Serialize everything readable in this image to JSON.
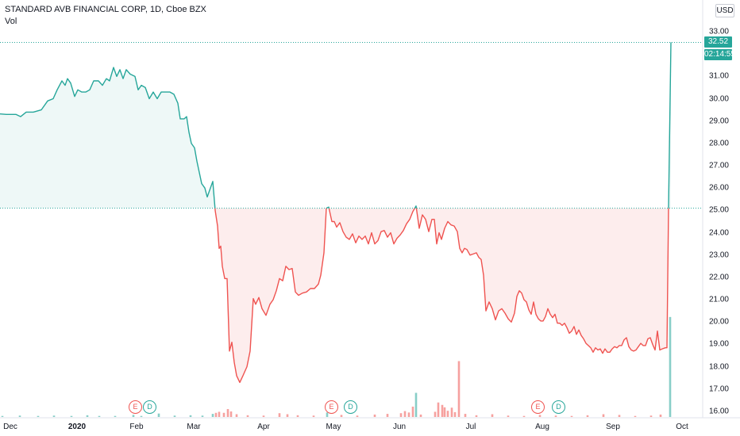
{
  "header": {
    "title": "STANDARD AVB FINANCIAL CORP, 1D, Cboe BZX",
    "volume_label": "Vol",
    "currency_button": "USD",
    "clipped_top_label": "3"
  },
  "price_badge": {
    "price": "32.52",
    "countdown": "02:14:55"
  },
  "y_ticks": [
    "33.00",
    "32.00",
    "31.00",
    "30.00",
    "29.00",
    "28.00",
    "27.00",
    "26.00",
    "25.00",
    "24.00",
    "23.00",
    "22.00",
    "21.00",
    "20.00",
    "19.00",
    "18.00",
    "17.00",
    "16.00"
  ],
  "x_ticks": [
    "Dec",
    "2020",
    "Feb",
    "Mar",
    "Apr",
    "May",
    "Jun",
    "Jul",
    "Aug",
    "Sep",
    "Oct"
  ],
  "events": [
    {
      "label": "E",
      "kind": "earnings"
    },
    {
      "label": "D",
      "kind": "dividend"
    },
    {
      "label": "E",
      "kind": "earnings"
    },
    {
      "label": "D",
      "kind": "dividend"
    },
    {
      "label": "E",
      "kind": "earnings"
    },
    {
      "label": "D",
      "kind": "dividend"
    }
  ],
  "colors": {
    "up": "#26a69a",
    "down": "#ef5350",
    "baseline": "#26a69a"
  },
  "chart_data": {
    "type": "area",
    "subtype": "baseline",
    "baseline_value": 25.1,
    "last_price": 32.52,
    "ylim": [
      15.85,
      33.6
    ],
    "points": [
      [
        0,
        29.32
      ],
      [
        8,
        29.3
      ],
      [
        12,
        29.3
      ],
      [
        20,
        29.3
      ],
      [
        26,
        29.2
      ],
      [
        33,
        29.4
      ],
      [
        42,
        29.4
      ],
      [
        52,
        29.5
      ],
      [
        60,
        29.9
      ],
      [
        67,
        30.0
      ],
      [
        72,
        30.4
      ],
      [
        78,
        30.8
      ],
      [
        82,
        30.6
      ],
      [
        85,
        30.9
      ],
      [
        89,
        30.7
      ],
      [
        94,
        30.1
      ],
      [
        98,
        30.4
      ],
      [
        103,
        30.3
      ],
      [
        108,
        30.3
      ],
      [
        113,
        30.4
      ],
      [
        118,
        30.8
      ],
      [
        124,
        30.8
      ],
      [
        129,
        30.6
      ],
      [
        134,
        30.9
      ],
      [
        138,
        30.8
      ],
      [
        143,
        31.4
      ],
      [
        147,
        31.0
      ],
      [
        151,
        31.3
      ],
      [
        155,
        30.9
      ],
      [
        159,
        31.3
      ],
      [
        164,
        31.1
      ],
      [
        170,
        31.0
      ],
      [
        174,
        30.4
      ],
      [
        178,
        30.6
      ],
      [
        183,
        30.5
      ],
      [
        188,
        30.0
      ],
      [
        193,
        30.3
      ],
      [
        198,
        30.0
      ],
      [
        203,
        30.3
      ],
      [
        208,
        30.3
      ],
      [
        214,
        30.3
      ],
      [
        219,
        30.2
      ],
      [
        224,
        29.8
      ],
      [
        227,
        29.1
      ],
      [
        232,
        29.1
      ],
      [
        235,
        29.2
      ],
      [
        238,
        28.5
      ],
      [
        241,
        28.0
      ],
      [
        245,
        27.8
      ],
      [
        248,
        27.2
      ],
      [
        251,
        26.7
      ],
      [
        254,
        26.2
      ],
      [
        258,
        26.0
      ],
      [
        261,
        25.6
      ],
      [
        265,
        26.0
      ],
      [
        268,
        26.3
      ],
      [
        271,
        25.0
      ],
      [
        274,
        24.3
      ],
      [
        276,
        23.3
      ],
      [
        278,
        23.4
      ],
      [
        280,
        22.5
      ],
      [
        283,
        21.95
      ],
      [
        286,
        21.95
      ],
      [
        289,
        18.7
      ],
      [
        292,
        19.1
      ],
      [
        295,
        18.2
      ],
      [
        298,
        17.6
      ],
      [
        302,
        17.3
      ],
      [
        306,
        17.6
      ],
      [
        311,
        18.0
      ],
      [
        315,
        18.7
      ],
      [
        319,
        21.05
      ],
      [
        322,
        20.8
      ],
      [
        326,
        21.1
      ],
      [
        330,
        20.6
      ],
      [
        335,
        20.3
      ],
      [
        340,
        20.8
      ],
      [
        344,
        21.0
      ],
      [
        348,
        21.4
      ],
      [
        352,
        21.95
      ],
      [
        356,
        21.85
      ],
      [
        360,
        22.5
      ],
      [
        364,
        22.35
      ],
      [
        368,
        22.4
      ],
      [
        372,
        21.35
      ],
      [
        376,
        21.2
      ],
      [
        381,
        21.3
      ],
      [
        386,
        21.35
      ],
      [
        391,
        21.5
      ],
      [
        396,
        21.5
      ],
      [
        401,
        21.7
      ],
      [
        404,
        22.1
      ],
      [
        408,
        23.1
      ],
      [
        411,
        25.1
      ],
      [
        414,
        25.15
      ],
      [
        418,
        24.5
      ],
      [
        421,
        24.5
      ],
      [
        424,
        24.25
      ],
      [
        428,
        24.45
      ],
      [
        432,
        24.05
      ],
      [
        436,
        23.8
      ],
      [
        440,
        23.7
      ],
      [
        444,
        23.95
      ],
      [
        448,
        23.55
      ],
      [
        452,
        23.85
      ],
      [
        456,
        23.7
      ],
      [
        460,
        23.85
      ],
      [
        464,
        23.5
      ],
      [
        468,
        24.0
      ],
      [
        472,
        23.5
      ],
      [
        476,
        23.65
      ],
      [
        480,
        24.05
      ],
      [
        484,
        24.1
      ],
      [
        488,
        23.8
      ],
      [
        492,
        24.0
      ],
      [
        496,
        23.5
      ],
      [
        500,
        23.75
      ],
      [
        504,
        23.9
      ],
      [
        508,
        24.1
      ],
      [
        512,
        24.4
      ],
      [
        516,
        24.6
      ],
      [
        520,
        24.95
      ],
      [
        524,
        25.2
      ],
      [
        528,
        24.2
      ],
      [
        532,
        24.8
      ],
      [
        536,
        24.6
      ],
      [
        540,
        24.05
      ],
      [
        544,
        24.6
      ],
      [
        547,
        24.6
      ],
      [
        550,
        23.5
      ],
      [
        553,
        24.0
      ],
      [
        556,
        23.7
      ],
      [
        560,
        24.2
      ],
      [
        564,
        24.5
      ],
      [
        568,
        24.35
      ],
      [
        572,
        24.3
      ],
      [
        576,
        24.05
      ],
      [
        579,
        23.3
      ],
      [
        582,
        23.1
      ],
      [
        585,
        23.3
      ],
      [
        588,
        23.25
      ],
      [
        592,
        23.0
      ],
      [
        596,
        23.05
      ],
      [
        600,
        23.1
      ],
      [
        603,
        22.9
      ],
      [
        606,
        22.8
      ],
      [
        609,
        22.1
      ],
      [
        612,
        20.5
      ],
      [
        616,
        20.9
      ],
      [
        620,
        20.6
      ],
      [
        624,
        20.1
      ],
      [
        628,
        20.5
      ],
      [
        632,
        20.6
      ],
      [
        636,
        20.4
      ],
      [
        640,
        20.15
      ],
      [
        644,
        20.0
      ],
      [
        648,
        20.4
      ],
      [
        651,
        21.15
      ],
      [
        654,
        21.4
      ],
      [
        657,
        21.3
      ],
      [
        660,
        21.0
      ],
      [
        663,
        20.9
      ],
      [
        666,
        20.55
      ],
      [
        669,
        20.35
      ],
      [
        672,
        20.9
      ],
      [
        675,
        20.35
      ],
      [
        678,
        20.15
      ],
      [
        681,
        20.05
      ],
      [
        684,
        20.05
      ],
      [
        687,
        20.25
      ],
      [
        690,
        20.6
      ],
      [
        693,
        20.35
      ],
      [
        696,
        20.2
      ],
      [
        699,
        20.35
      ],
      [
        702,
        19.95
      ],
      [
        705,
        19.95
      ],
      [
        708,
        19.85
      ],
      [
        711,
        19.95
      ],
      [
        714,
        19.75
      ],
      [
        717,
        19.5
      ],
      [
        720,
        19.6
      ],
      [
        723,
        19.8
      ],
      [
        726,
        19.45
      ],
      [
        729,
        19.65
      ],
      [
        732,
        19.4
      ],
      [
        735,
        19.25
      ],
      [
        738,
        19.05
      ],
      [
        741,
        18.95
      ],
      [
        744,
        18.85
      ],
      [
        747,
        18.65
      ],
      [
        750,
        18.85
      ],
      [
        753,
        18.75
      ],
      [
        756,
        18.8
      ],
      [
        759,
        18.6
      ],
      [
        762,
        18.8
      ],
      [
        765,
        18.65
      ],
      [
        768,
        18.65
      ],
      [
        771,
        18.8
      ],
      [
        774,
        18.9
      ],
      [
        777,
        18.85
      ],
      [
        780,
        18.95
      ],
      [
        783,
        18.95
      ],
      [
        786,
        19.2
      ],
      [
        789,
        19.3
      ],
      [
        792,
        18.9
      ],
      [
        795,
        18.75
      ],
      [
        798,
        18.7
      ],
      [
        801,
        18.75
      ],
      [
        804,
        18.9
      ],
      [
        807,
        19.05
      ],
      [
        810,
        18.95
      ],
      [
        813,
        18.95
      ],
      [
        816,
        19.25
      ],
      [
        819,
        19.3
      ],
      [
        822,
        19.0
      ],
      [
        825,
        18.75
      ],
      [
        828,
        19.6
      ],
      [
        831,
        18.75
      ],
      [
        834,
        18.8
      ],
      [
        838,
        18.85
      ],
      [
        840,
        18.85
      ],
      [
        842,
        25.1
      ],
      [
        845,
        32.52
      ]
    ],
    "volume": [
      [
        3,
        0.3
      ],
      [
        25,
        0.4
      ],
      [
        48,
        0.3
      ],
      [
        68,
        0.4
      ],
      [
        90,
        0.3
      ],
      [
        110,
        0.5
      ],
      [
        125,
        0.3
      ],
      [
        145,
        0.3
      ],
      [
        168,
        0.6
      ],
      [
        178,
        0.3
      ],
      [
        200,
        1.0
      ],
      [
        220,
        0.4
      ],
      [
        240,
        0.5
      ],
      [
        255,
        0.4
      ],
      [
        268,
        0.9
      ],
      [
        272,
        1.2
      ],
      [
        276,
        1.5
      ],
      [
        282,
        1.2
      ],
      [
        287,
        2.3
      ],
      [
        291,
        1.6
      ],
      [
        298,
        0.8
      ],
      [
        312,
        0.5
      ],
      [
        332,
        0.4
      ],
      [
        352,
        1.1
      ],
      [
        362,
        0.8
      ],
      [
        375,
        0.5
      ],
      [
        395,
        0.4
      ],
      [
        412,
        1.3
      ],
      [
        430,
        0.6
      ],
      [
        450,
        0.4
      ],
      [
        472,
        0.7
      ],
      [
        488,
        0.9
      ],
      [
        505,
        1.1
      ],
      [
        510,
        1.7
      ],
      [
        515,
        1.3
      ],
      [
        520,
        3.0
      ],
      [
        524,
        7.0
      ],
      [
        530,
        0.7
      ],
      [
        548,
        1.5
      ],
      [
        552,
        4.2
      ],
      [
        557,
        3.5
      ],
      [
        560,
        2.8
      ],
      [
        564,
        1.8
      ],
      [
        569,
        2.7
      ],
      [
        573,
        1.4
      ],
      [
        578,
        16.2
      ],
      [
        586,
        0.9
      ],
      [
        600,
        0.5
      ],
      [
        620,
        0.8
      ],
      [
        640,
        0.4
      ],
      [
        660,
        0.3
      ],
      [
        680,
        0.6
      ],
      [
        700,
        0.4
      ],
      [
        720,
        0.3
      ],
      [
        740,
        0.5
      ],
      [
        760,
        0.8
      ],
      [
        780,
        0.6
      ],
      [
        800,
        0.3
      ],
      [
        820,
        0.4
      ],
      [
        832,
        0.7
      ],
      [
        844,
        29.0
      ]
    ],
    "y_ticks": [
      33,
      32,
      31,
      30,
      29,
      28,
      27,
      26,
      25,
      24,
      23,
      22,
      21,
      20,
      19,
      18,
      17,
      16
    ],
    "x_ticks": [
      "Dec",
      "2020",
      "Feb",
      "Mar",
      "Apr",
      "May",
      "Jun",
      "Jul",
      "Aug",
      "Sep",
      "Oct"
    ],
    "grid": false,
    "legend": "none"
  }
}
